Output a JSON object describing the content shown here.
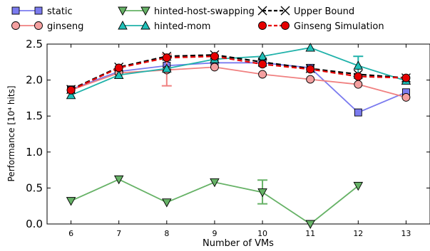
{
  "chart_data": {
    "type": "line",
    "xlabel": "Number of VMs",
    "ylabel": "Performance [10⁴ hits]",
    "x": [
      6,
      7,
      8,
      9,
      10,
      11,
      12,
      13
    ],
    "xlim": [
      5.5,
      13.5
    ],
    "ylim": [
      0,
      2.5
    ],
    "yticks": [
      0.0,
      0.5,
      1.0,
      1.5,
      2.0,
      2.5
    ],
    "ytick_labels": [
      "0.0",
      "0.5",
      "1.0",
      "1.5",
      "2.0",
      "2.5"
    ],
    "xtick_labels": [
      "6",
      "7",
      "8",
      "9",
      "10",
      "11",
      "12",
      "13"
    ],
    "legend_position": "top",
    "grid": false,
    "series": [
      {
        "name": "static",
        "color": "#7b7bef",
        "marker": "square",
        "markerFill": "#7b7bef",
        "dashed": false,
        "values": [
          1.87,
          2.12,
          2.2,
          2.24,
          2.24,
          2.17,
          1.55,
          1.83
        ]
      },
      {
        "name": "ginseng",
        "color": "#f08080",
        "marker": "circle",
        "markerFill": "#f4a0a0",
        "dashed": false,
        "values": [
          1.86,
          2.1,
          2.14,
          2.18,
          2.08,
          2.01,
          1.94,
          1.76
        ],
        "errorbars": [
          {
            "x": 8,
            "low": 1.92,
            "high": 2.36
          }
        ]
      },
      {
        "name": "hinted-host-swapping",
        "color": "#66b266",
        "marker": "triangle-down",
        "markerFill": "#66b266",
        "dashed": false,
        "values": [
          0.32,
          0.62,
          0.3,
          0.58,
          0.44,
          0.0,
          0.53,
          null
        ],
        "errorbars": [
          {
            "x": 10,
            "low": 0.28,
            "high": 0.61
          }
        ]
      },
      {
        "name": "hinted-mom",
        "color": "#20b2aa",
        "marker": "triangle-up",
        "markerFill": "#20c0b8",
        "dashed": false,
        "values": [
          1.79,
          2.07,
          2.16,
          2.29,
          2.33,
          2.45,
          2.2,
          1.99
        ],
        "errorbars": [
          {
            "x": 12,
            "low": 2.05,
            "high": 2.33
          }
        ]
      },
      {
        "name": "Upper Bound",
        "color": "#000000",
        "marker": "x",
        "markerFill": "none",
        "dashed": true,
        "values": [
          1.87,
          2.18,
          2.33,
          2.35,
          2.25,
          2.16,
          2.08,
          2.03
        ]
      },
      {
        "name": "Ginseng Simulation",
        "color": "#e60000",
        "marker": "circle",
        "markerFill": "#e60000",
        "dashed": true,
        "values": [
          1.86,
          2.17,
          2.31,
          2.33,
          2.22,
          2.15,
          2.05,
          2.03
        ]
      }
    ]
  }
}
